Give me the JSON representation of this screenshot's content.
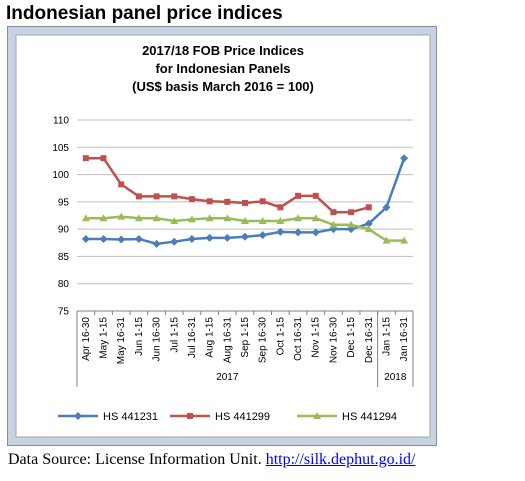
{
  "page": {
    "heading": "Indonesian panel price indices",
    "source_prefix": "Data Source: License Information Unit.",
    "source_link": "http://silk.dephut.go.id/"
  },
  "chart_data": {
    "type": "line",
    "title_lines": [
      "2017/18 FOB Price Indices",
      "for Indonesian Panels",
      "(US$ basis March 2016 = 100)"
    ],
    "categories": [
      "Apr 16-30",
      "May 1-15",
      "May 16-31",
      "Jun 1-15",
      "Jun 16-30",
      "Jul 1-15",
      "Jul 16-31",
      "Aug 1-15",
      "Aug 16-31",
      "Sep 1-15",
      "Sep 16-30",
      "Oct 1-15",
      "Oct 16-31",
      "Nov 1-15",
      "Nov 16-30",
      "Dec 1-15",
      "Dec 16-31",
      "Jan 1-15",
      "Jan 16-31"
    ],
    "groups": [
      {
        "label": "2017",
        "start": 0,
        "end": 16
      },
      {
        "label": "2018",
        "start": 17,
        "end": 18
      }
    ],
    "ylim": [
      75,
      110
    ],
    "yticks": [
      75,
      80,
      85,
      90,
      95,
      100,
      105,
      110
    ],
    "grid": true,
    "legend_position": "bottom",
    "series": [
      {
        "name": "HS 441231",
        "color": "#4a7ebb",
        "marker": "diamond",
        "values": [
          88.2,
          88.2,
          88.1,
          88.2,
          87.3,
          87.7,
          88.2,
          88.4,
          88.4,
          88.6,
          88.9,
          89.5,
          89.4,
          89.4,
          90.0,
          90.0,
          91.0,
          94.0,
          103.0
        ]
      },
      {
        "name": "HS 441299",
        "color": "#c0504d",
        "marker": "square",
        "values": [
          103.0,
          103.0,
          98.2,
          96.0,
          96.0,
          96.0,
          95.5,
          95.1,
          95.0,
          94.8,
          95.1,
          94.0,
          96.1,
          96.1,
          93.1,
          93.1,
          94.0,
          null,
          null
        ]
      },
      {
        "name": "HS 441294",
        "color": "#9bbb59",
        "marker": "triangle",
        "values": [
          92.0,
          92.0,
          92.3,
          92.0,
          92.0,
          91.5,
          91.8,
          92.0,
          92.0,
          91.5,
          91.5,
          91.5,
          92.0,
          92.0,
          90.8,
          90.8,
          90.0,
          87.9,
          87.9
        ]
      }
    ]
  }
}
